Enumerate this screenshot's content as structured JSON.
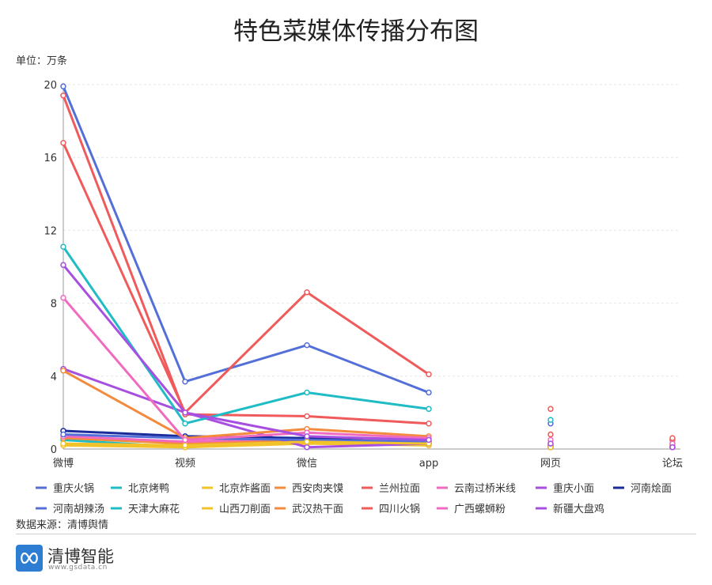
{
  "chart_data": {
    "type": "line",
    "title": "特色菜媒体传播分布图",
    "unit_label": "单位：万条",
    "source": "数据来源：清博舆情",
    "categories": [
      "微博",
      "视频",
      "微信",
      "app",
      "网页",
      "论坛"
    ],
    "ylim": [
      0,
      20
    ],
    "yticks": [
      0,
      4,
      8,
      12,
      16,
      20
    ],
    "grid": "horizontal dashed",
    "legend_position": "bottom",
    "series": [
      {
        "name": "重庆火锅",
        "color": "#5470d8",
        "values": [
          19.9,
          3.7,
          5.7,
          3.1,
          1.4,
          0.2
        ]
      },
      {
        "name": "北京烤鸭",
        "color": "#1fbcc6",
        "values": [
          0.5,
          0.1,
          0.4,
          0.3,
          0.1,
          0.1
        ]
      },
      {
        "name": "北京炸酱面",
        "color": "#f2c22b",
        "values": [
          0.2,
          0.1,
          0.3,
          0.2,
          0.1,
          0.1
        ]
      },
      {
        "name": "西安肉夹馍",
        "color": "#f48a3c",
        "values": [
          0.6,
          0.3,
          0.5,
          0.4,
          0.2,
          0.1
        ]
      },
      {
        "name": "兰州拉面",
        "color": "#f05a5a",
        "values": [
          19.4,
          1.9,
          1.8,
          1.4,
          0.8,
          0.5
        ]
      },
      {
        "name": "云南过桥米线",
        "color": "#f06bc0",
        "values": [
          0.7,
          0.4,
          0.6,
          0.5,
          0.2,
          0.1
        ]
      },
      {
        "name": "重庆小面",
        "color": "#a74fe0",
        "values": [
          4.4,
          2.0,
          0.1,
          0.3,
          0.1,
          0.1
        ]
      },
      {
        "name": "河南烩面",
        "color": "#1a2b9a",
        "values": [
          1.0,
          0.7,
          0.6,
          0.3,
          0.1,
          0.1
        ]
      },
      {
        "name": "河南胡辣汤",
        "color": "#5470d8",
        "values": [
          0.8,
          0.6,
          0.5,
          0.4,
          0.2,
          0.1
        ]
      },
      {
        "name": "天津大麻花",
        "color": "#1fbcc6",
        "values": [
          11.1,
          1.4,
          3.1,
          2.2,
          1.6,
          0.3
        ]
      },
      {
        "name": "山西刀削面",
        "color": "#f2c22b",
        "values": [
          0.3,
          0.2,
          0.4,
          0.3,
          0.1,
          0.1
        ]
      },
      {
        "name": "武汉热干面",
        "color": "#f48a3c",
        "values": [
          4.3,
          0.6,
          1.1,
          0.7,
          0.3,
          0.2
        ]
      },
      {
        "name": "四川火锅",
        "color": "#f05a5a",
        "values": [
          16.8,
          2.0,
          8.6,
          4.1,
          2.2,
          0.6
        ]
      },
      {
        "name": "广西螺蛳粉",
        "color": "#f06bc0",
        "values": [
          8.3,
          0.5,
          0.9,
          0.6,
          0.5,
          0.3
        ]
      },
      {
        "name": "新疆大盘鸡",
        "color": "#a74fe0",
        "values": [
          10.1,
          2.0,
          0.7,
          0.5,
          0.3,
          0.1
        ]
      }
    ]
  },
  "branding": {
    "name": "清博智能",
    "url": "www.gsdata.cn"
  }
}
